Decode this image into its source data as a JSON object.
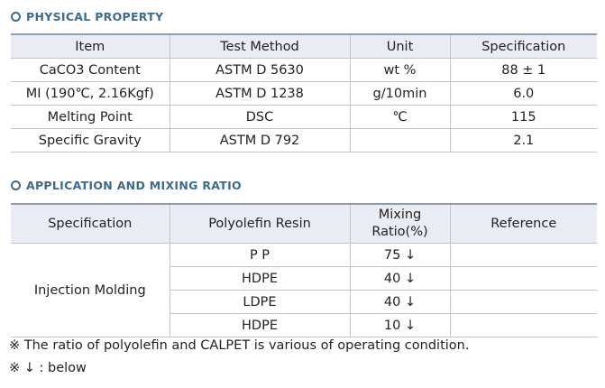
{
  "physical": {
    "title": "PHYSICAL PROPERTY",
    "headers": [
      "Item",
      "Test Method",
      "Unit",
      "Specification"
    ],
    "rows": [
      [
        "CaCO3 Content",
        "ASTM D 5630",
        "wt %",
        "88 ± 1"
      ],
      [
        "MI (190℃, 2.16Kgf)",
        "ASTM D 1238",
        "g/10min",
        "6.0"
      ],
      [
        "Melting Point",
        "DSC",
        "℃",
        "115"
      ],
      [
        "Specific Gravity",
        "ASTM D 792",
        "",
        "2.1"
      ]
    ]
  },
  "application": {
    "title": "APPLICATION AND MIXING RATIO",
    "headers": {
      "spec": "Specification",
      "resin": "Polyolefin Resin",
      "ratio_line1": "Mixing",
      "ratio_line2": "Ratio(%)",
      "reference": "Reference"
    },
    "spec_value": "Injection Molding",
    "rows": [
      {
        "resin": "P P",
        "ratio": "75 ↓",
        "reference": ""
      },
      {
        "resin": "HDPE",
        "ratio": "40 ↓",
        "reference": ""
      },
      {
        "resin": "LDPE",
        "ratio": "40 ↓",
        "reference": ""
      },
      {
        "resin": "HDPE",
        "ratio": "10 ↓",
        "reference": ""
      }
    ]
  },
  "notes": [
    "※ The ratio of polyolefin and CALPET is various of operating condition.",
    "※ ↓ : below"
  ]
}
